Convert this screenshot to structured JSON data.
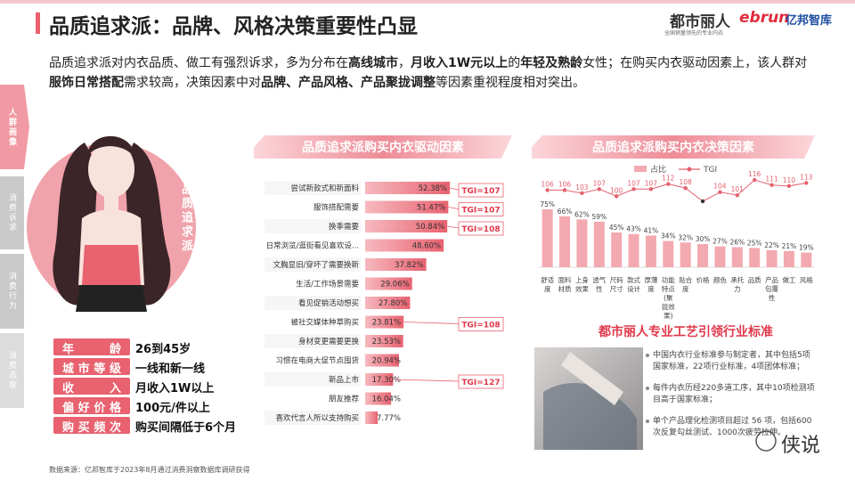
{
  "header": {
    "title": "品质追求派：品牌、风格决策重要性凸显",
    "brand": "都市丽人",
    "brand_slogan": "全国销量领先的专业内衣",
    "partner_logo_en": "ebrun",
    "partner_logo_cn": "亿邦智库"
  },
  "intro": [
    {
      "text": "品质追求派对内衣品质、做工有强烈诉求，多为分布在",
      "bold": false
    },
    {
      "text": "高线城市",
      "bold": true
    },
    {
      "text": "，",
      "bold": false
    },
    {
      "text": "月收入1W元以上",
      "bold": true
    },
    {
      "text": "的",
      "bold": false
    },
    {
      "text": "年轻及熟龄",
      "bold": true
    },
    {
      "text": "女性；在购买内衣驱动因素上，该人群对",
      "bold": false
    },
    {
      "text": "服饰日常搭配",
      "bold": true
    },
    {
      "text": "需求较高，决策因素中对",
      "bold": false
    },
    {
      "text": "品牌、产品风格、产品聚拢调整",
      "bold": true
    },
    {
      "text": "等因素重视程度相对突出。",
      "bold": false
    }
  ],
  "sidebar": {
    "tabs": [
      "人群画像",
      "消费诉求",
      "消费行为",
      "消费态度"
    ],
    "active": 0
  },
  "persona": {
    "label": "品质追求派",
    "profile": [
      {
        "label": "年龄",
        "value": "26到45岁"
      },
      {
        "label": "城市等级",
        "value": "一线和新一线"
      },
      {
        "label": "收入",
        "value": "月收入1W以上"
      },
      {
        "label": "偏好价格",
        "value": "100元/件以上"
      },
      {
        "label": "购买频次",
        "value": "购买间隔低于6个月"
      }
    ]
  },
  "chart_data": [
    {
      "type": "hbar",
      "title": "品质追求派购买内衣驱动因素",
      "color": "#ec7d88",
      "categories": [
        "尝试新款式和新面料",
        "服饰搭配需要",
        "换季需要",
        "日常浏览/逛街看见喜欢设...",
        "文胸显旧/穿坏了需要换新",
        "生活/工作场景需要",
        "看见促销活动想买",
        "被社交媒体种草购买",
        "身材变更需要更换",
        "习惯在电商大促节点囤货",
        "新品上市",
        "朋友推荐",
        "喜欢代言人所以支持购买"
      ],
      "values": [
        52.38,
        51.47,
        50.84,
        48.6,
        37.82,
        29.06,
        27.8,
        23.81,
        23.53,
        20.94,
        17.3,
        16.04,
        7.77
      ],
      "value_labels": [
        "52.38%",
        "51.47%",
        "50.84%",
        "48.60%",
        "37.82%",
        "29.06%",
        "27.80%",
        "23.81%",
        "23.53%",
        "20.94%",
        "17.30%",
        "16.04%",
        "7.77%"
      ],
      "annotations": [
        {
          "index": 0,
          "text": "TGI=107"
        },
        {
          "index": 1,
          "text": "TGI=107"
        },
        {
          "index": 2,
          "text": "TGI=108"
        },
        {
          "index": 7,
          "text": "TGI=108"
        },
        {
          "index": 10,
          "text": "TGI=127"
        }
      ]
    },
    {
      "type": "bar_line",
      "title": "品质追求派购买内衣决策因素",
      "categories": [
        "舒适度",
        "面料材质",
        "上身效果",
        "透气性",
        "尺码尺寸",
        "款式设计",
        "厚薄度",
        "功能特点(聚拢效果)",
        "贴合度",
        "价格",
        "颜色",
        "承托力",
        "品质",
        "产品包覆性",
        "做工",
        "风格"
      ],
      "series": [
        {
          "name": "占比",
          "color": "#f3a9b0",
          "values": [
            75,
            66,
            62,
            59,
            45,
            43,
            41,
            34,
            32,
            30,
            27,
            26,
            25,
            22,
            21,
            19
          ],
          "value_labels": [
            "75%",
            "66%",
            "62%",
            "59%",
            "45%",
            "43%",
            "41%",
            "34%",
            "32%",
            "30%",
            "27%",
            "26%",
            "25%",
            "22%",
            "21%",
            "19%"
          ]
        },
        {
          "name": "TGI",
          "color": "#e4606e",
          "axis": "y2",
          "values": [
            106,
            106,
            103,
            107,
            100,
            107,
            107,
            112,
            108,
            95,
            104,
            101,
            116,
            111,
            110,
            113
          ],
          "value_labels": [
            106,
            106,
            103,
            107,
            100,
            107,
            107,
            112,
            108,
            null,
            104,
            101,
            116,
            111,
            110,
            113
          ]
        }
      ]
    }
  ],
  "standard": {
    "title": "都市丽人专业工艺引领行业标准",
    "items": [
      "中国内衣行业标准参与制定者，其中包括5项国家标准，22项行业标准，4项团体标准；",
      "每件内衣历经220多道工序，其中10项检测项目高于国家标准；",
      "单个产品理化检测项目超过 56 项，包括600次反复勾丝测试、1000次疲劳拉伸。"
    ]
  },
  "watermark": "侠说",
  "source": "数据来源：亿邦智库于2023年8月通过消费洞察数据库调研获得"
}
